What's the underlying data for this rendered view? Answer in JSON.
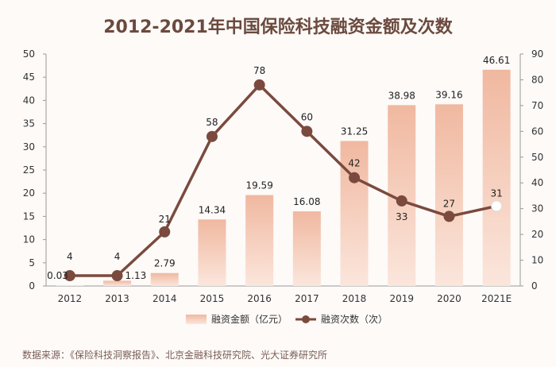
{
  "source_text": "数据来源：《保险科技洞察报告》、北京金融科技研究院、光大证券研究所",
  "chart_data": {
    "type": "bar",
    "title": "2012-2021年中国保险科技融资金额及次数",
    "categories": [
      "2012",
      "2013",
      "2014",
      "2015",
      "2016",
      "2017",
      "2018",
      "2019",
      "2020",
      "2021E"
    ],
    "series": [
      {
        "name": "融资金额（亿元）",
        "type": "bar",
        "axis": "left",
        "values": [
          0.03,
          1.13,
          2.79,
          14.34,
          19.59,
          16.08,
          31.25,
          38.98,
          39.16,
          46.61
        ],
        "labels": [
          "0.03",
          "1.13",
          "2.79",
          "14.34",
          "19.59",
          "16.08",
          "31.25",
          "38.98",
          "39.16",
          "46.61"
        ]
      },
      {
        "name": "融资次数（次）",
        "type": "line",
        "axis": "right",
        "values": [
          4,
          4,
          21,
          58,
          78,
          60,
          42,
          33,
          27,
          31
        ],
        "labels": [
          "4",
          "4",
          "21",
          "58",
          "78",
          "60",
          "42",
          "33",
          "27",
          "31"
        ]
      }
    ],
    "y_left": {
      "min": 0,
      "max": 50,
      "ticks": [
        "0",
        "5",
        "10",
        "15",
        "20",
        "25",
        "30",
        "35",
        "40",
        "45",
        "50"
      ]
    },
    "y_right": {
      "min": 0,
      "max": 90,
      "ticks": [
        "0",
        "10",
        "20",
        "30",
        "40",
        "50",
        "60",
        "70",
        "80",
        "90"
      ]
    },
    "grid": false,
    "legend_position": "bottom",
    "colors": {
      "bar_top": "#f0b8a0",
      "bar_bottom": "#fbe6dc",
      "line": "#7b4a3e",
      "marker_last": "#ffffff"
    }
  }
}
